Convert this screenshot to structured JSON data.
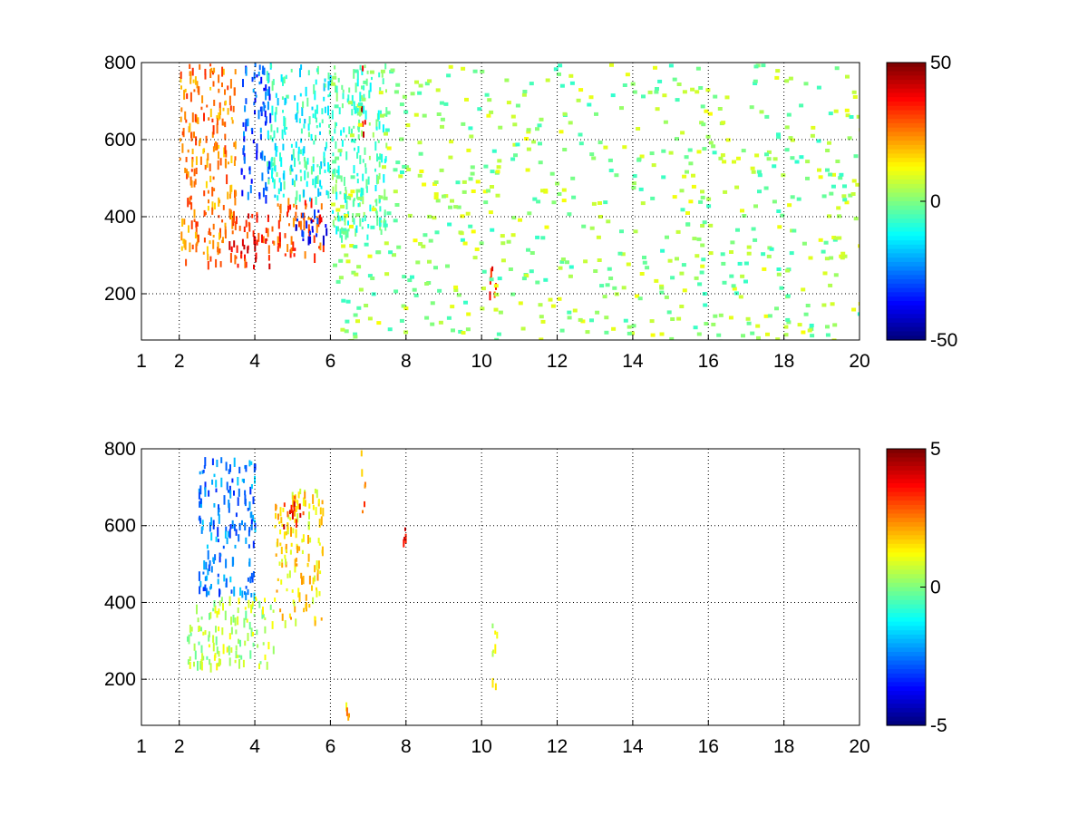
{
  "chart_data": [
    {
      "type": "heatmap",
      "title": "",
      "xlabel": "",
      "ylabel": "",
      "x_ticks": [
        1,
        2,
        4,
        6,
        8,
        10,
        12,
        14,
        16,
        18,
        20
      ],
      "y_ticks": [
        200,
        400,
        600,
        800
      ],
      "xlim": [
        1,
        20
      ],
      "ylim": [
        80,
        800
      ],
      "grid": true,
      "colormap": "jet",
      "colorbar": {
        "min": -50,
        "max": 50,
        "ticks": [
          50,
          0,
          -50
        ]
      },
      "regions": [
        {
          "x": [
            2.0,
            3.5
          ],
          "y": [
            280,
            800
          ],
          "value": 25
        },
        {
          "x": [
            3.3,
            4.4
          ],
          "y": [
            270,
            420
          ],
          "value": 35
        },
        {
          "x": [
            3.6,
            4.4
          ],
          "y": [
            450,
            800
          ],
          "value": -30
        },
        {
          "x": [
            4.4,
            5.8
          ],
          "y": [
            300,
            450
          ],
          "value": 30
        },
        {
          "x": [
            5.0,
            5.9
          ],
          "y": [
            340,
            420
          ],
          "value": -35
        },
        {
          "x": [
            4.3,
            6.0
          ],
          "y": [
            450,
            800
          ],
          "value": -10
        },
        {
          "x": [
            6.0,
            7.5
          ],
          "y": [
            350,
            800
          ],
          "value": -5
        },
        {
          "x": [
            6.8,
            6.9
          ],
          "y": [
            620,
            800
          ],
          "value": 40
        },
        {
          "x": [
            10.2,
            10.4
          ],
          "y": [
            170,
            280
          ],
          "value": 35
        }
      ]
    },
    {
      "type": "heatmap",
      "title": "",
      "xlabel": "",
      "ylabel": "",
      "x_ticks": [
        1,
        2,
        4,
        6,
        8,
        10,
        12,
        14,
        16,
        18,
        20
      ],
      "y_ticks": [
        200,
        400,
        600,
        800
      ],
      "xlim": [
        1,
        20
      ],
      "ylim": [
        80,
        800
      ],
      "grid": true,
      "colormap": "jet",
      "colorbar": {
        "min": -5,
        "max": 5,
        "ticks": [
          5,
          0,
          -5
        ]
      },
      "regions": [
        {
          "x": [
            2.5,
            4.0
          ],
          "y": [
            420,
            780
          ],
          "value": -2.5
        },
        {
          "x": [
            2.2,
            4.5
          ],
          "y": [
            240,
            420
          ],
          "value": 0.5
        },
        {
          "x": [
            4.5,
            5.8
          ],
          "y": [
            350,
            700
          ],
          "value": 1.5
        },
        {
          "x": [
            4.7,
            5.3
          ],
          "y": [
            600,
            680
          ],
          "value": 3.5
        },
        {
          "x": [
            6.8,
            6.9
          ],
          "y": [
            580,
            800
          ],
          "value": 2.5
        },
        {
          "x": [
            7.9,
            8.0
          ],
          "y": [
            540,
            600
          ],
          "value": 4
        },
        {
          "x": [
            10.25,
            10.4
          ],
          "y": [
            170,
            360
          ],
          "value": 1
        },
        {
          "x": [
            6.4,
            6.5
          ],
          "y": [
            100,
            180
          ],
          "value": 2
        }
      ]
    }
  ]
}
